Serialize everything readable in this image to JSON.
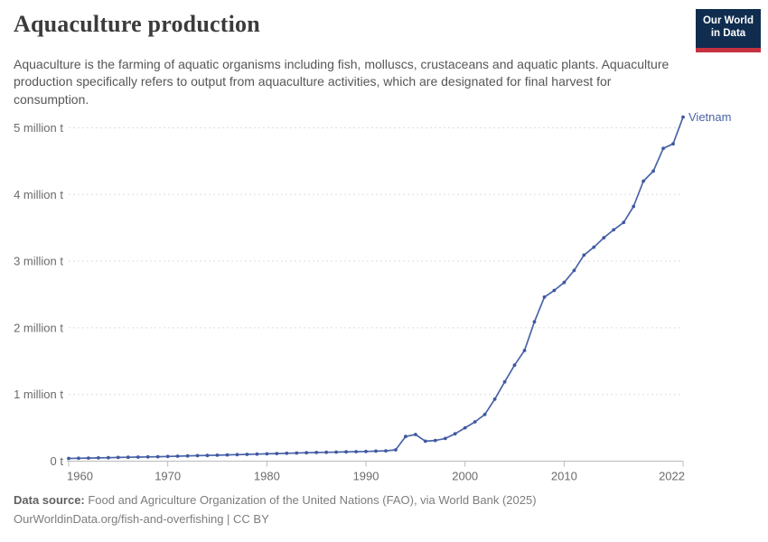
{
  "header": {
    "title": "Aquaculture production",
    "logo": {
      "line1": "Our World",
      "line2": "in Data",
      "bg_color": "#102d50",
      "accent_color": "#c5313f"
    }
  },
  "subtitle": "Aquaculture is the farming of aquatic organisms including fish, molluscs, crustaceans and aquatic plants. Aquaculture production specifically refers to output from aquaculture activities, which are designated for final harvest for consumption.",
  "chart_data": {
    "type": "line",
    "series": [
      {
        "name": "Vietnam",
        "x": [
          1960,
          1961,
          1962,
          1963,
          1964,
          1965,
          1966,
          1967,
          1968,
          1969,
          1970,
          1971,
          1972,
          1973,
          1974,
          1975,
          1976,
          1977,
          1978,
          1979,
          1980,
          1981,
          1982,
          1983,
          1984,
          1985,
          1986,
          1987,
          1988,
          1989,
          1990,
          1991,
          1992,
          1993,
          1994,
          1995,
          1996,
          1997,
          1998,
          1999,
          2000,
          2001,
          2002,
          2003,
          2004,
          2005,
          2006,
          2007,
          2008,
          2009,
          2010,
          2011,
          2012,
          2013,
          2014,
          2015,
          2016,
          2017,
          2018,
          2019,
          2020,
          2021,
          2022
        ],
        "values": [
          0.04,
          0.043,
          0.046,
          0.049,
          0.052,
          0.055,
          0.058,
          0.061,
          0.064,
          0.067,
          0.07,
          0.074,
          0.078,
          0.082,
          0.086,
          0.09,
          0.094,
          0.098,
          0.102,
          0.106,
          0.11,
          0.114,
          0.118,
          0.122,
          0.126,
          0.13,
          0.133,
          0.136,
          0.139,
          0.142,
          0.145,
          0.15,
          0.155,
          0.17,
          0.37,
          0.4,
          0.3,
          0.31,
          0.34,
          0.41,
          0.5,
          0.59,
          0.7,
          0.93,
          1.19,
          1.44,
          1.66,
          2.09,
          2.46,
          2.56,
          2.68,
          2.86,
          3.09,
          3.21,
          3.35,
          3.47,
          3.58,
          3.82,
          4.2,
          4.35,
          4.69,
          4.76,
          5.16
        ]
      }
    ],
    "unit": "million t",
    "title": "Aquaculture production",
    "xlabel": "",
    "ylabel": "",
    "xlim": [
      1960,
      2022
    ],
    "ylim": [
      0,
      5.25
    ],
    "x_ticks": [
      1960,
      1970,
      1980,
      1990,
      2000,
      2010,
      2022
    ],
    "y_ticks": [
      {
        "value": 0,
        "label": "0 t"
      },
      {
        "value": 1,
        "label": "1 million t"
      },
      {
        "value": 2,
        "label": "2 million t"
      },
      {
        "value": 3,
        "label": "3 million t"
      },
      {
        "value": 4,
        "label": "4 million t"
      },
      {
        "value": 5,
        "label": "5 million t"
      }
    ],
    "grid": true,
    "legend_position": "end-of-line",
    "line_color": "#4a64a8",
    "marker_color": "#3f58a0",
    "gridline_color": "#dddddd",
    "axis_line_color": "#bbbbbb"
  },
  "footer": {
    "source_label": "Data source:",
    "source_text": " Food and Agriculture Organization of the United Nations (FAO), via World Bank (2025)",
    "link": "OurWorldinData.org/fish-and-overfishing",
    "license": " | CC BY"
  }
}
